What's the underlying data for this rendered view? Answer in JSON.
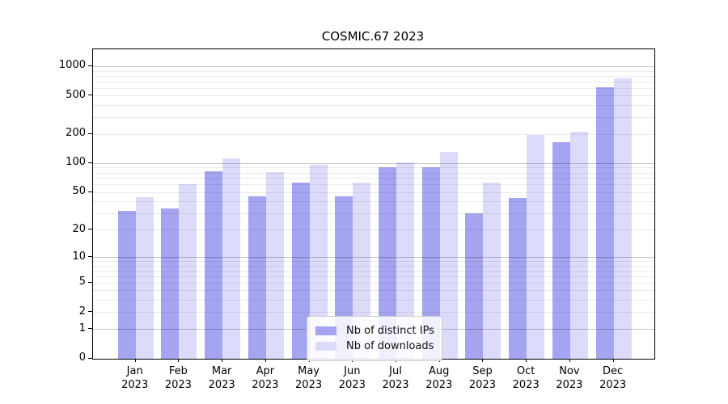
{
  "figure": {
    "background": "#ffffff"
  },
  "chart_data": {
    "type": "bar",
    "title": "COSMIC.67 2023",
    "categories": [
      "Jan 2023",
      "Feb 2023",
      "Mar 2023",
      "Apr 2023",
      "May 2023",
      "Jun 2023",
      "Jul 2023",
      "Aug 2023",
      "Sep 2023",
      "Oct 2023",
      "Nov 2023",
      "Dec 2023"
    ],
    "months": [
      "Jan",
      "Feb",
      "Mar",
      "Apr",
      "May",
      "Jun",
      "Jul",
      "Aug",
      "Sep",
      "Oct",
      "Nov",
      "Dec"
    ],
    "year": "2023",
    "series": [
      {
        "name": "Nb of distinct IPs",
        "color": "#a4a4f0",
        "values": [
          32,
          34,
          84,
          46,
          64,
          46,
          92,
          91,
          30,
          44,
          168,
          610
        ]
      },
      {
        "name": "Nb of downloads",
        "color": "#dcdcfa",
        "values": [
          45,
          61,
          113,
          82,
          98,
          64,
          103,
          133,
          64,
          200,
          215,
          760
        ]
      }
    ],
    "xlabel": "",
    "ylabel": "",
    "ylim": [
      0,
      1500
    ],
    "yscale": {
      "type": "log1p",
      "description": "position proportional to log10(1+v)"
    },
    "y_ticks_labeled": [
      0,
      1,
      2,
      5,
      10,
      20,
      50,
      100,
      200,
      500,
      1000
    ],
    "y_ticks_minor": [
      3,
      4,
      6,
      7,
      8,
      9,
      30,
      40,
      60,
      70,
      80,
      90,
      300,
      400,
      600,
      700,
      800,
      900
    ],
    "grid": "on",
    "legend_position": "lower center"
  },
  "colors": {
    "grid_major": "rgba(0,0,0,0.23)",
    "grid_minor": "rgba(0,0,0,0.08)",
    "spine": "#000000",
    "legend_border": "#cccccc"
  }
}
